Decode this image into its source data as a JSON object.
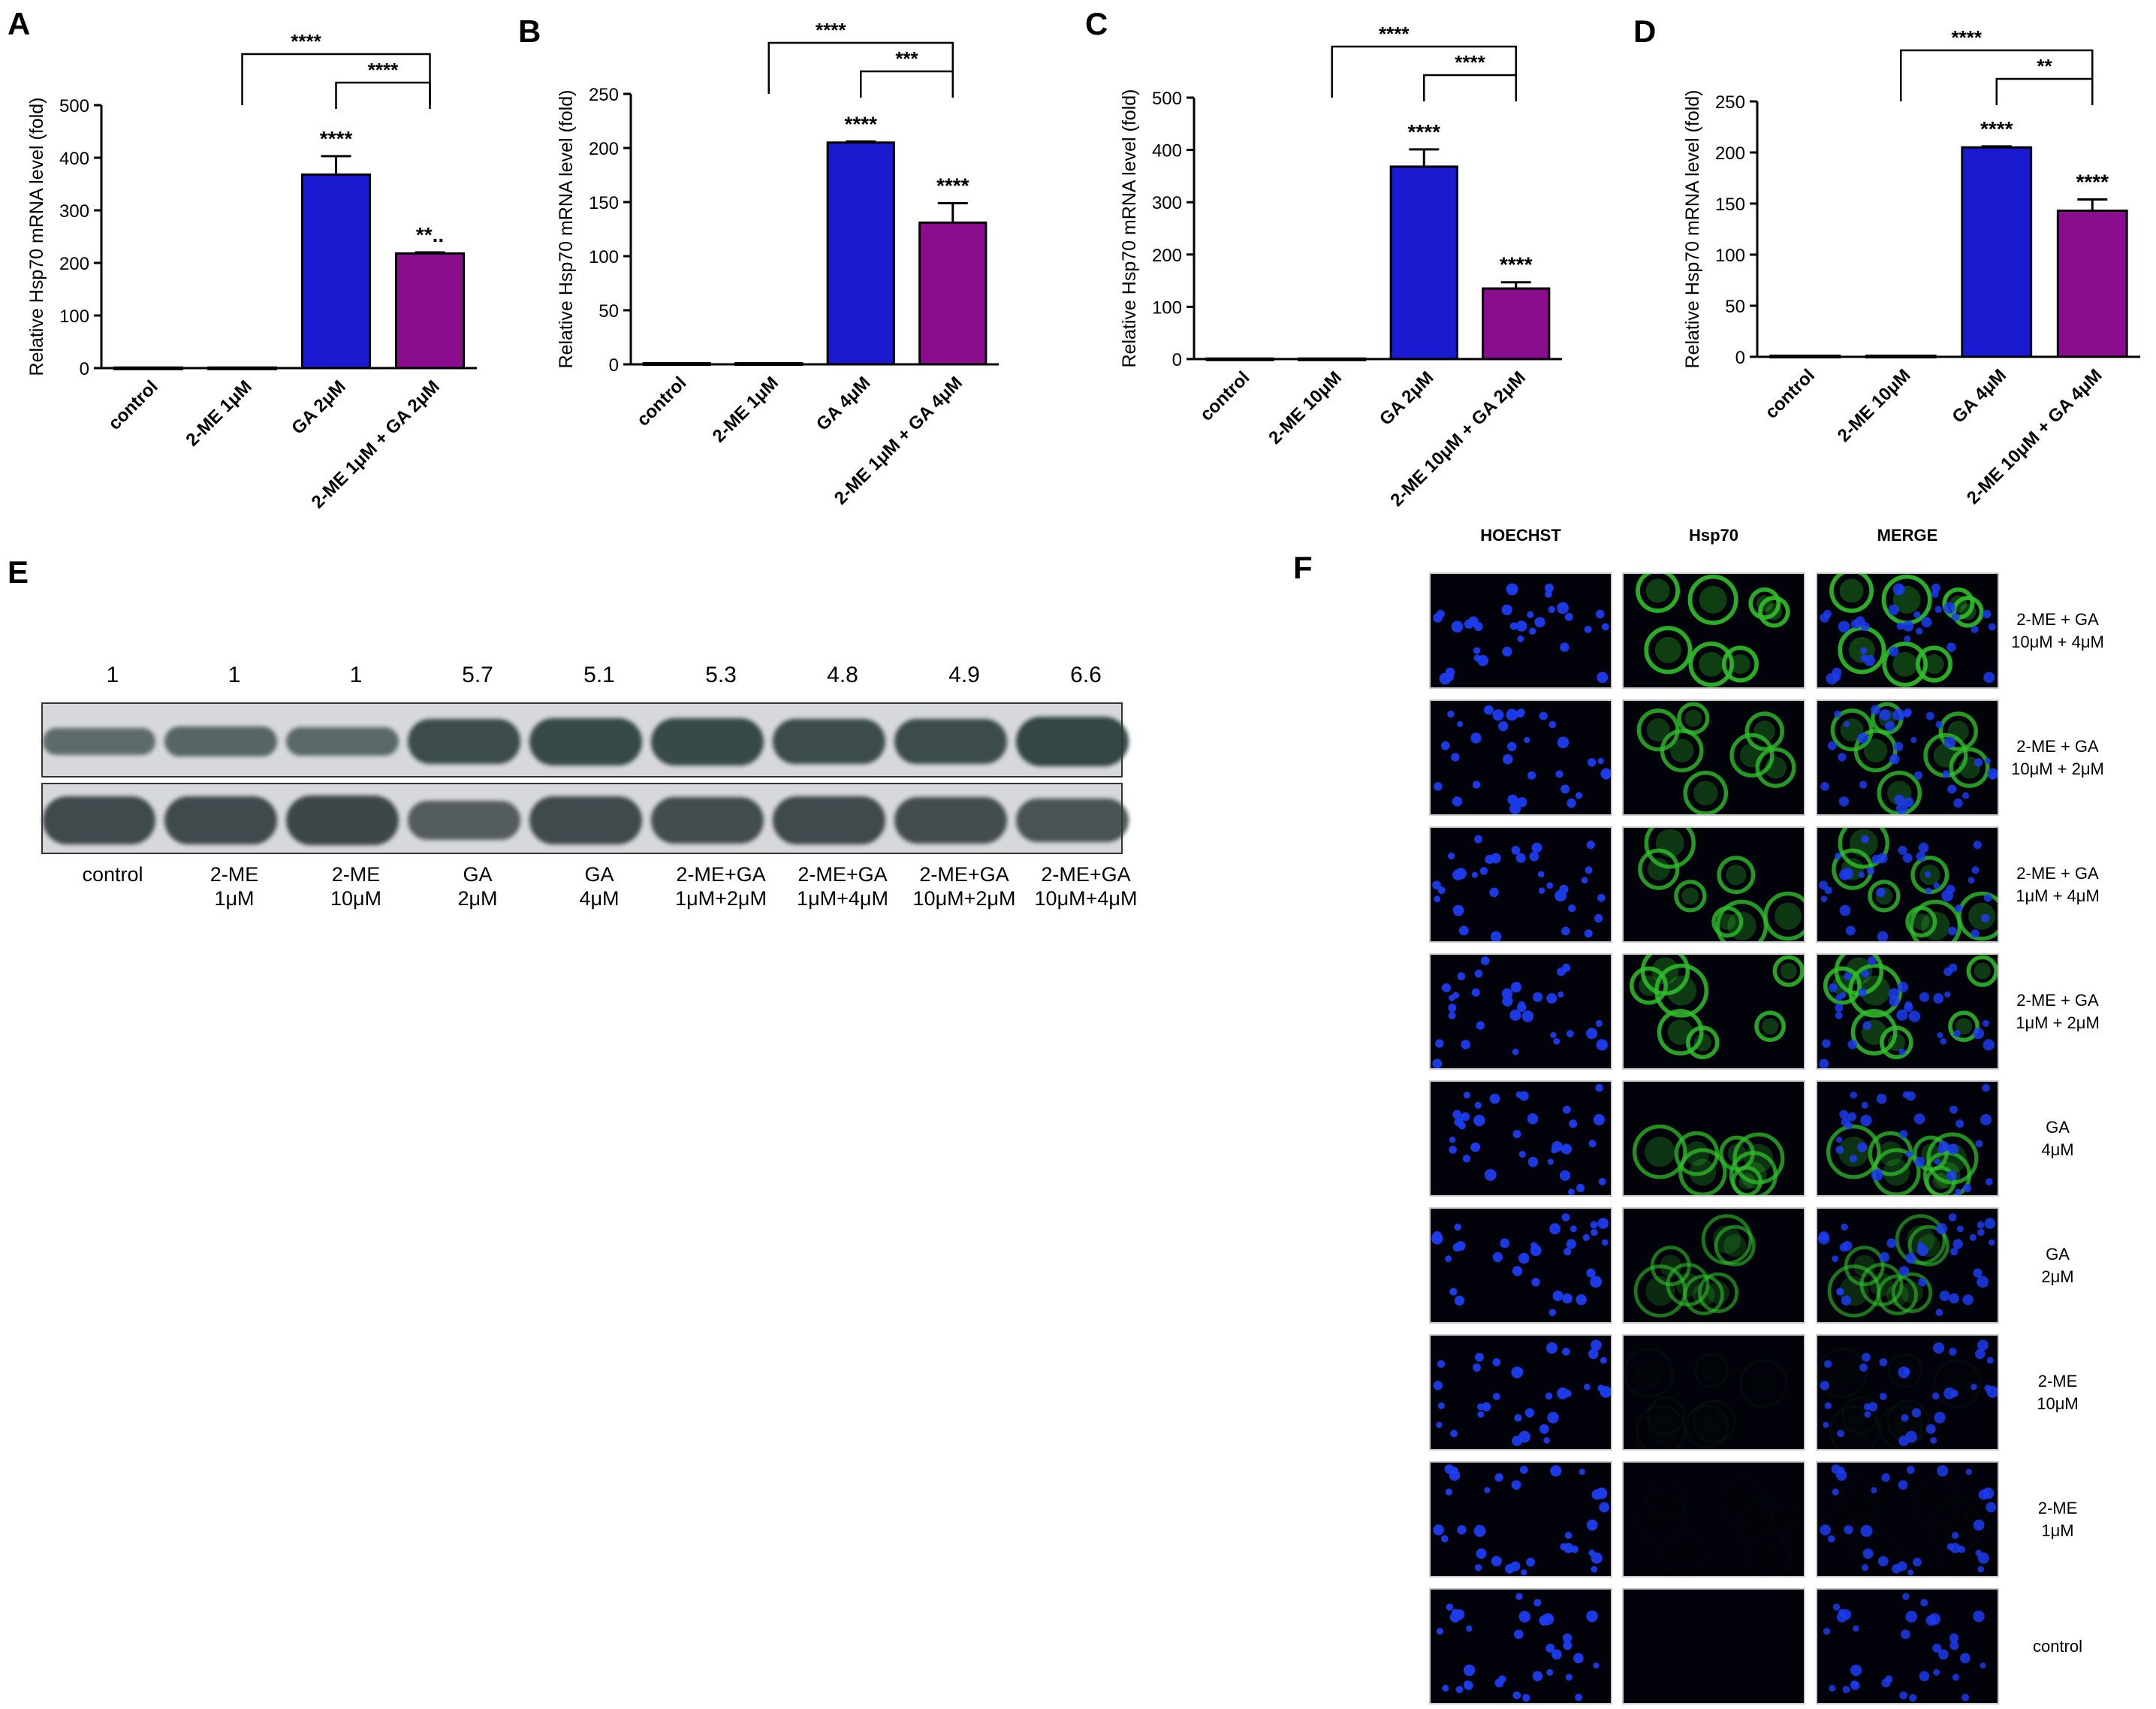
{
  "chart_data": [
    {
      "panel": "A",
      "type": "bar",
      "ylabel": "Relative Hsp70 mRNA level (fold)",
      "ylim": [
        0,
        500
      ],
      "yticks": [
        0,
        100,
        200,
        300,
        400,
        500
      ],
      "categories": [
        "control",
        "2-ME 1μM",
        "GA 2μM",
        "2-ME 1μM + GA 2μM"
      ],
      "values": [
        1,
        1,
        368,
        218
      ],
      "errors": [
        0,
        0,
        35,
        2
      ],
      "bar_colors": [
        "#000000",
        "#000000",
        "#1a1ad0",
        "#8a0d8e"
      ],
      "bar_labels": [
        "",
        "",
        "****",
        "**.."
      ],
      "brackets": [
        {
          "from": 1,
          "to": 3,
          "label": "****"
        },
        {
          "from": 2,
          "to": 3,
          "label": "****"
        }
      ]
    },
    {
      "panel": "B",
      "type": "bar",
      "ylabel": "Relative Hsp70 mRNA level (fold)",
      "ylim": [
        0,
        250
      ],
      "yticks": [
        0,
        50,
        100,
        150,
        200,
        250
      ],
      "categories": [
        "control",
        "2-ME 1μM",
        "GA 4μM",
        "2-ME 1μM + GA 4μM"
      ],
      "values": [
        1,
        1,
        205,
        131
      ],
      "errors": [
        0,
        0,
        1,
        18
      ],
      "bar_colors": [
        "#000000",
        "#000000",
        "#1a1ad0",
        "#8a0d8e"
      ],
      "bar_labels": [
        "",
        "",
        "****",
        "****"
      ],
      "brackets": [
        {
          "from": 1,
          "to": 3,
          "label": "****"
        },
        {
          "from": 2,
          "to": 3,
          "label": "***"
        }
      ]
    },
    {
      "panel": "C",
      "type": "bar",
      "ylabel": "Relative Hsp70 mRNA level (fold)",
      "ylim": [
        0,
        500
      ],
      "yticks": [
        0,
        100,
        200,
        300,
        400,
        500
      ],
      "categories": [
        "control",
        "2-ME 10μM",
        "GA 2μM",
        "2-ME 10μM + GA 2μM"
      ],
      "values": [
        1,
        1,
        368,
        135
      ],
      "errors": [
        0,
        0,
        33,
        12
      ],
      "bar_colors": [
        "#000000",
        "#000000",
        "#1a1ad0",
        "#8a0d8e"
      ],
      "bar_labels": [
        "",
        "",
        "****",
        "****"
      ],
      "brackets": [
        {
          "from": 1,
          "to": 3,
          "label": "****"
        },
        {
          "from": 2,
          "to": 3,
          "label": "****"
        }
      ]
    },
    {
      "panel": "D",
      "type": "bar",
      "ylabel": "Relative Hsp70 mRNA level (fold)",
      "ylim": [
        0,
        250
      ],
      "yticks": [
        0,
        50,
        100,
        150,
        200,
        250
      ],
      "categories": [
        "control",
        "2-ME 10μM",
        "GA 4μM",
        "2-ME 10μM + GA 4μM"
      ],
      "values": [
        1,
        1,
        205,
        143
      ],
      "errors": [
        0,
        0,
        1,
        11
      ],
      "bar_colors": [
        "#000000",
        "#000000",
        "#1a1ad0",
        "#8a0d8e"
      ],
      "bar_labels": [
        "",
        "",
        "****",
        "****"
      ],
      "brackets": [
        {
          "from": 1,
          "to": 3,
          "label": "****"
        },
        {
          "from": 2,
          "to": 3,
          "label": "**"
        }
      ]
    }
  ],
  "panel_letters": [
    "A",
    "B",
    "C",
    "D",
    "E",
    "F"
  ],
  "western_blot": {
    "ratios": [
      "1",
      "1",
      "1",
      "5.7",
      "5.1",
      "5.3",
      "4.8",
      "4.9",
      "6.6"
    ],
    "lanes": [
      [
        "control",
        ""
      ],
      [
        "2-ME",
        "1μM"
      ],
      [
        "2-ME",
        "10μM"
      ],
      [
        "GA",
        "2μM"
      ],
      [
        "GA",
        "4μM"
      ],
      [
        "2-ME+GA",
        "1μM+2μM"
      ],
      [
        "2-ME+GA",
        "1μM+4μM"
      ],
      [
        "2-ME+GA",
        "10μM+2μM"
      ],
      [
        "2-ME+GA",
        "10μM+4μM"
      ]
    ],
    "top_band_intensity": [
      0.35,
      0.45,
      0.4,
      0.85,
      0.9,
      0.9,
      0.85,
      0.85,
      0.95
    ],
    "bottom_band_intensity": [
      0.85,
      0.85,
      0.9,
      0.55,
      0.85,
      0.8,
      0.85,
      0.8,
      0.7
    ]
  },
  "immunofluorescence": {
    "columns": [
      "HOECHST",
      "Hsp70",
      "MERGE"
    ],
    "rows": [
      {
        "label": [
          "2-ME + GA",
          "10μM + 4μM"
        ],
        "green": 0.9
      },
      {
        "label": [
          "2-ME + GA",
          "10μM + 2μM"
        ],
        "green": 0.8
      },
      {
        "label": [
          "2-ME + GA",
          "1μM + 4μM"
        ],
        "green": 0.8
      },
      {
        "label": [
          "2-ME + GA",
          "1μM + 2μM"
        ],
        "green": 0.85
      },
      {
        "label": [
          "GA",
          "4μM"
        ],
        "green": 0.75
      },
      {
        "label": [
          "GA",
          "2μM"
        ],
        "green": 0.6
      },
      {
        "label": [
          "2-ME",
          "10μM"
        ],
        "green": 0.05
      },
      {
        "label": [
          "2-ME",
          "1μM"
        ],
        "green": 0.02
      },
      {
        "label": [
          "control",
          ""
        ],
        "green": 0.0
      }
    ],
    "colors": {
      "nucleus": "#1c3cf0",
      "hsp70": "#2fbf2a",
      "background": "#02030a"
    }
  }
}
